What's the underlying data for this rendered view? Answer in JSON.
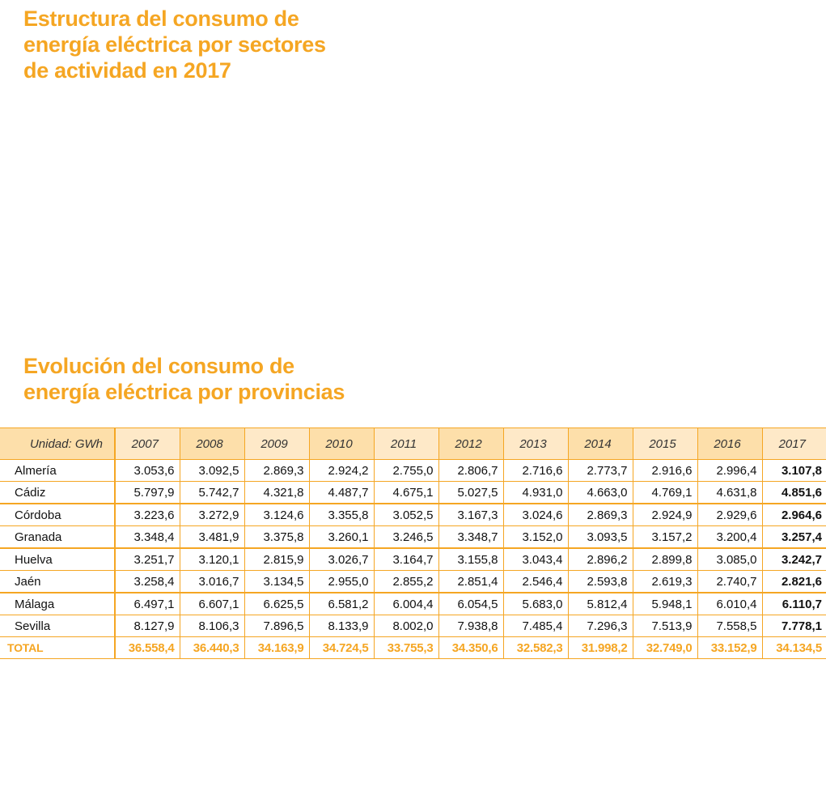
{
  "titles": {
    "title1": [
      "Estructura del consumo de",
      "energía eléctrica por sectores",
      "de actividad en 2017"
    ],
    "title2": [
      "Evolución del consumo de",
      "energía eléctrica por provincias"
    ]
  },
  "colors": {
    "accent": "#f5a623",
    "header_dark": "#fddfaa",
    "header_light": "#fee9c8"
  },
  "table": {
    "unit_label": "Unidad: GWh",
    "years": [
      "2007",
      "2008",
      "2009",
      "2010",
      "2011",
      "2012",
      "2013",
      "2014",
      "2015",
      "2016",
      "2017"
    ],
    "rows": [
      {
        "province": "Almería",
        "values": [
          "3.053,6",
          "3.092,5",
          "2.869,3",
          "2.924,2",
          "2.755,0",
          "2.806,7",
          "2.716,6",
          "2.773,7",
          "2.916,6",
          "2.996,4",
          "3.107,8"
        ]
      },
      {
        "province": "Cádiz",
        "values": [
          "5.797,9",
          "5.742,7",
          "4.321,8",
          "4.487,7",
          "4.675,1",
          "5.027,5",
          "4.931,0",
          "4.663,0",
          "4.769,1",
          "4.631,8",
          "4.851,6"
        ]
      },
      {
        "province": "Córdoba",
        "values": [
          "3.223,6",
          "3.272,9",
          "3.124,6",
          "3.355,8",
          "3.052,5",
          "3.167,3",
          "3.024,6",
          "2.869,3",
          "2.924,9",
          "2.929,6",
          "2.964,6"
        ]
      },
      {
        "province": "Granada",
        "values": [
          "3.348,4",
          "3.481,9",
          "3.375,8",
          "3.260,1",
          "3.246,5",
          "3.348,7",
          "3.152,0",
          "3.093,5",
          "3.157,2",
          "3.200,4",
          "3.257,4"
        ]
      },
      {
        "province": "Huelva",
        "values": [
          "3.251,7",
          "3.120,1",
          "2.815,9",
          "3.026,7",
          "3.164,7",
          "3.155,8",
          "3.043,4",
          "2.896,2",
          "2.899,8",
          "3.085,0",
          "3.242,7"
        ]
      },
      {
        "province": "Jaén",
        "values": [
          "3.258,4",
          "3.016,7",
          "3.134,5",
          "2.955,0",
          "2.855,2",
          "2.851,4",
          "2.546,4",
          "2.593,8",
          "2.619,3",
          "2.740,7",
          "2.821,6"
        ]
      },
      {
        "province": "Málaga",
        "values": [
          "6.497,1",
          "6.607,1",
          "6.625,5",
          "6.581,2",
          "6.004,4",
          "6.054,5",
          "5.683,0",
          "5.812,4",
          "5.948,1",
          "6.010,4",
          "6.110,7"
        ]
      },
      {
        "province": "Sevilla",
        "values": [
          "8.127,9",
          "8.106,3",
          "7.896,5",
          "8.133,9",
          "8.002,0",
          "7.938,8",
          "7.485,4",
          "7.296,3",
          "7.513,9",
          "7.558,5",
          "7.778,1"
        ]
      }
    ],
    "total": {
      "label": "TOTAL",
      "values": [
        "36.558,4",
        "36.440,3",
        "34.163,9",
        "34.724,5",
        "33.755,3",
        "34.350,6",
        "32.582,3",
        "31.998,2",
        "32.749,0",
        "33.152,9",
        "34.134,5"
      ]
    }
  }
}
